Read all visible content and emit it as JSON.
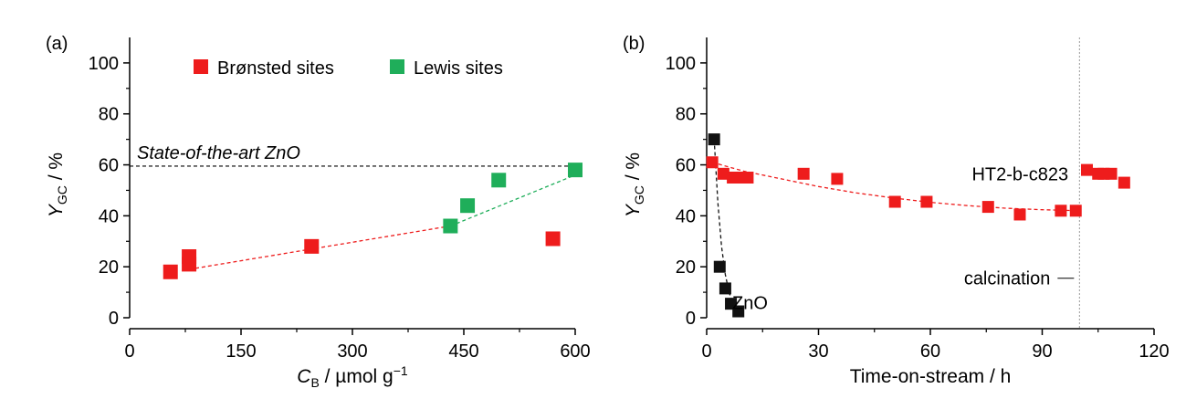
{
  "chart_data": [
    {
      "panel": "(a)",
      "type": "scatter",
      "xlabel": {
        "main": "C",
        "sub": "B",
        "rest": " / µmol g",
        "sup": "−1"
      },
      "ylabel": {
        "main": "Y",
        "sub": "GC",
        "rest": " / %"
      },
      "xlim": [
        0,
        600
      ],
      "ylim": [
        0,
        110
      ],
      "xticks": [
        0,
        150,
        300,
        450,
        600
      ],
      "yticks": [
        0,
        20,
        40,
        60,
        80,
        100
      ],
      "reference_line": {
        "y": 59.5,
        "label": "State-of-the-art ZnO"
      },
      "legend": {
        "position": "top",
        "entries": [
          {
            "name": "Brønsted sites",
            "color": "#ee1c1c"
          },
          {
            "name": "Lewis sites",
            "color": "#1fae5a"
          }
        ]
      },
      "series": [
        {
          "name": "Brønsted sites",
          "color": "#ee1c1c",
          "x": [
            55,
            80,
            80,
            245,
            570
          ],
          "y": [
            18,
            21,
            24,
            28,
            31
          ]
        },
        {
          "name": "Lewis sites",
          "color": "#1fae5a",
          "x": [
            432,
            455,
            497,
            600
          ],
          "y": [
            36,
            44,
            54,
            58
          ]
        }
      ],
      "fits": [
        {
          "color": "#ee1c1c",
          "x": [
            80,
            432
          ],
          "y": [
            19,
            36
          ]
        },
        {
          "color": "#1fae5a",
          "x": [
            432,
            600
          ],
          "y": [
            36,
            56
          ]
        }
      ]
    },
    {
      "panel": "(b)",
      "type": "scatter",
      "xlabel": {
        "main": "Time-on-stream / h"
      },
      "ylabel": {
        "main": "Y",
        "sub": "GC",
        "rest": " / %"
      },
      "xlim": [
        0,
        120
      ],
      "ylim": [
        0,
        110
      ],
      "xticks": [
        0,
        30,
        60,
        90,
        120
      ],
      "yticks": [
        0,
        20,
        40,
        60,
        80,
        100
      ],
      "vertical_line": {
        "x": 100,
        "label": "calcination"
      },
      "series": [
        {
          "name": "HT2-b-c823",
          "color": "#ee1c1c",
          "x": [
            1.5,
            4.5,
            7,
            9,
            11,
            26,
            35,
            50.5,
            59,
            75.5,
            84,
            95,
            99,
            102,
            105,
            106.5,
            108.5,
            112
          ],
          "y": [
            61,
            56.5,
            55,
            55,
            55,
            56.5,
            54.5,
            45.5,
            45.5,
            43.5,
            40.5,
            42,
            42,
            58,
            56.5,
            56.5,
            56.5,
            53
          ]
        },
        {
          "name": "ZnO",
          "color": "#111111",
          "x": [
            2,
            3.5,
            5,
            6.5,
            8.5
          ],
          "y": [
            70,
            20,
            11.5,
            5.5,
            2.5
          ]
        }
      ],
      "fits": [
        {
          "color": "#ee1c1c",
          "x": [
            1.5,
            10,
            20,
            30,
            40,
            50,
            60,
            70,
            80,
            90,
            100
          ],
          "y": [
            61,
            57.5,
            54.5,
            51.5,
            49,
            47,
            45.3,
            44,
            43,
            42.4,
            42
          ]
        },
        {
          "color": "#111111",
          "x": [
            2,
            3,
            4,
            5,
            6,
            7,
            8.5
          ],
          "y": [
            70,
            45,
            28,
            17,
            10,
            5.5,
            2.5
          ]
        }
      ]
    }
  ]
}
